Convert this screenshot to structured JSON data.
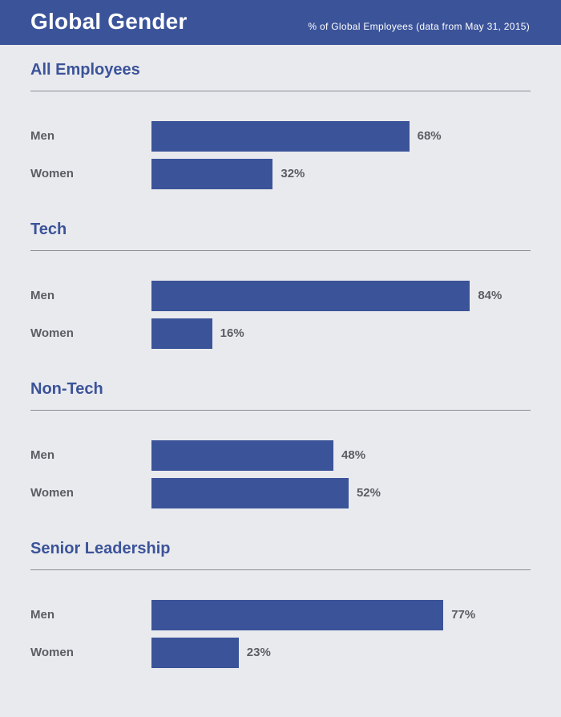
{
  "header": {
    "title": "Global Gender",
    "subtitle": "% of Global Employees (data from May 31, 2015)"
  },
  "colors": {
    "header_bg": "#3b5399",
    "bar": "#3b5399",
    "section_title": "#3b5399",
    "background": "#e9eaee",
    "label_text": "#5b5d63"
  },
  "chart_data": [
    {
      "type": "bar",
      "title": "All Employees",
      "categories": [
        "Men",
        "Women"
      ],
      "values": [
        68,
        32
      ],
      "value_labels": [
        "68%",
        "32%"
      ],
      "ylim": [
        0,
        100
      ]
    },
    {
      "type": "bar",
      "title": "Tech",
      "categories": [
        "Men",
        "Women"
      ],
      "values": [
        84,
        16
      ],
      "value_labels": [
        "84%",
        "16%"
      ],
      "ylim": [
        0,
        100
      ]
    },
    {
      "type": "bar",
      "title": "Non-Tech",
      "categories": [
        "Men",
        "Women"
      ],
      "values": [
        48,
        52
      ],
      "value_labels": [
        "48%",
        "52%"
      ],
      "ylim": [
        0,
        100
      ]
    },
    {
      "type": "bar",
      "title": "Senior Leadership",
      "categories": [
        "Men",
        "Women"
      ],
      "values": [
        77,
        23
      ],
      "value_labels": [
        "77%",
        "23%"
      ],
      "ylim": [
        0,
        100
      ]
    }
  ]
}
